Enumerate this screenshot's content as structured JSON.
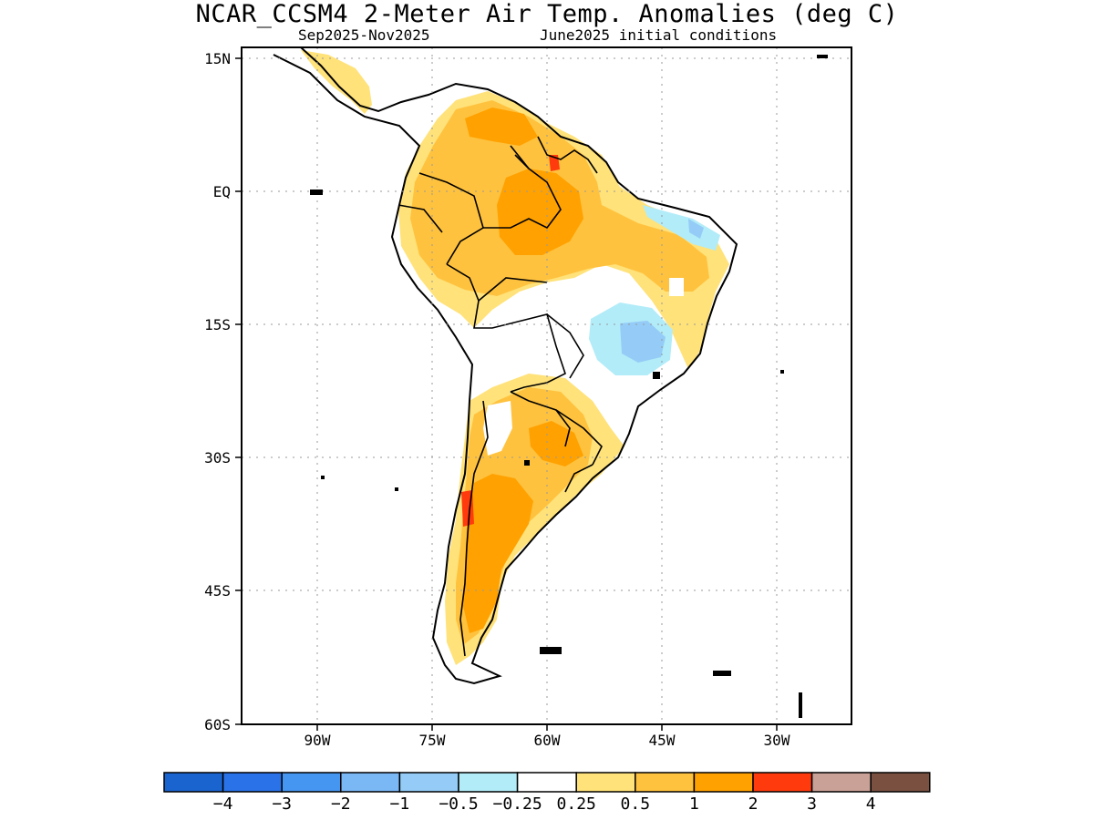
{
  "title": "NCAR_CCSM4 2-Meter Air Temp. Anomalies (deg C)",
  "subtitle_left": "Sep2025-Nov2025",
  "subtitle_right": "June2025 initial conditions",
  "lat_labels": [
    "15N",
    "EQ",
    "15S",
    "30S",
    "45S",
    "60S"
  ],
  "lon_labels": [
    "90W",
    "75W",
    "60W",
    "45W",
    "30W"
  ],
  "colorbar": {
    "labels": [
      "−4",
      "−3",
      "−2",
      "−1",
      "−0.5",
      "−0.25",
      "0.25",
      "0.5",
      "1",
      "2",
      "3",
      "4"
    ],
    "colors": [
      "#1a64d0",
      "#2a72e8",
      "#4596f0",
      "#7ab7f5",
      "#94ccf7",
      "#b2ecf8",
      "#ffffff",
      "#ffe27a",
      "#ffc23e",
      "#ffa100",
      "#ff3a0c",
      "#c9a196",
      "#7a5041"
    ]
  }
}
